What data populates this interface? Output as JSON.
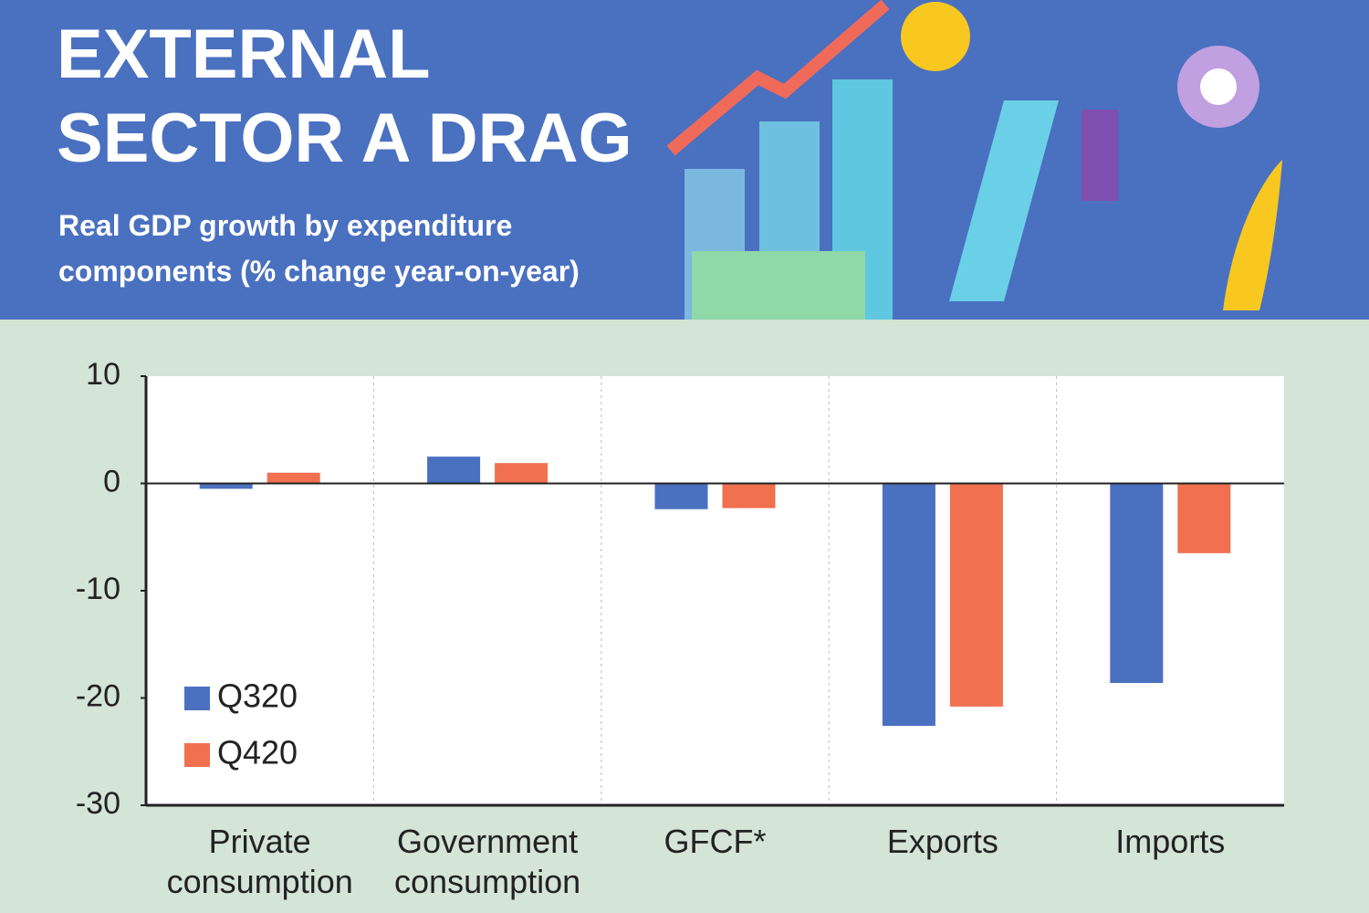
{
  "chart_data": {
    "type": "bar",
    "title": "EXTERNAL SECTOR A DRAG",
    "subtitle": "Real GDP growth by expenditure components (% change year-on-year)",
    "categories": [
      "Private consumption",
      "Government consumption",
      "GFCF*",
      "Exports",
      "Imports"
    ],
    "series": [
      {
        "name": "Q320",
        "color": "#4a70c0",
        "values": [
          -0.5,
          2.5,
          -2.4,
          -22.6,
          -18.6
        ]
      },
      {
        "name": "Q420",
        "color": "#f07050",
        "values": [
          1.0,
          1.9,
          -2.3,
          -20.8,
          -6.5
        ]
      }
    ],
    "ylim": [
      -30,
      10
    ],
    "yticks": [
      10,
      0,
      -10,
      -20,
      -30
    ],
    "legend": "lower left"
  }
}
